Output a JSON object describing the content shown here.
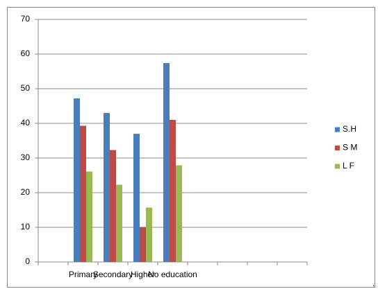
{
  "chart_data": {
    "type": "bar",
    "categories": [
      null,
      "Primary",
      "Secondary",
      "Higher",
      "No education",
      null,
      null,
      null,
      null
    ],
    "series": [
      {
        "name": "S.H",
        "color": "#4a7ebb",
        "values": [
          null,
          47.2,
          43,
          37,
          57.4,
          null,
          null,
          null,
          null
        ]
      },
      {
        "name": "S M",
        "color": "#be4b48",
        "values": [
          null,
          39.3,
          32.3,
          10.1,
          41,
          null,
          null,
          null,
          null
        ]
      },
      {
        "name": "L F",
        "color": "#98b954",
        "values": [
          null,
          26.1,
          22.3,
          15.7,
          27.9,
          null,
          null,
          null,
          null
        ]
      }
    ],
    "ylim": [
      0,
      70
    ],
    "yticks": [
      0,
      10,
      20,
      30,
      40,
      50,
      60,
      70
    ],
    "grid": true,
    "legend": "right",
    "note": "."
  }
}
